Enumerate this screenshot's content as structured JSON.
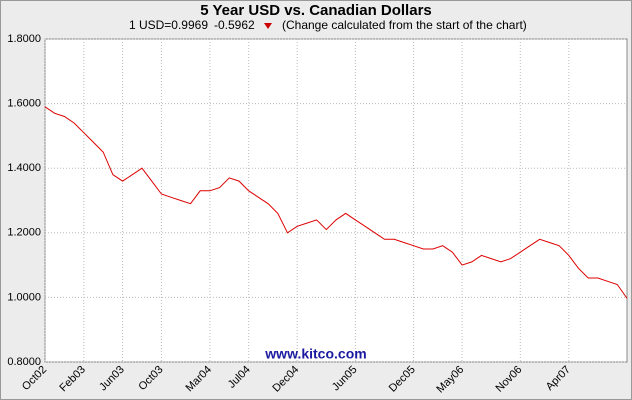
{
  "chart_data": {
    "type": "line",
    "title": "5 Year USD vs. Canadian Dollars",
    "subtitle": {
      "quote": "1 USD=0.9969",
      "change": "-0.5962",
      "note": "(Change calculated from the start of the chart)"
    },
    "watermark": "www.kitco.com",
    "x": [
      "2002-10",
      "2002-11",
      "2002-12",
      "2003-01",
      "2003-02",
      "2003-03",
      "2003-04",
      "2003-05",
      "2003-06",
      "2003-07",
      "2003-08",
      "2003-09",
      "2003-10",
      "2003-11",
      "2003-12",
      "2004-01",
      "2004-02",
      "2004-03",
      "2004-04",
      "2004-05",
      "2004-06",
      "2004-07",
      "2004-08",
      "2004-09",
      "2004-10",
      "2004-11",
      "2004-12",
      "2005-01",
      "2005-02",
      "2005-03",
      "2005-04",
      "2005-05",
      "2005-06",
      "2005-07",
      "2005-08",
      "2005-09",
      "2005-10",
      "2005-11",
      "2005-12",
      "2006-01",
      "2006-02",
      "2006-03",
      "2006-04",
      "2006-05",
      "2006-06",
      "2006-07",
      "2006-08",
      "2006-09",
      "2006-10",
      "2006-11",
      "2006-12",
      "2007-01",
      "2007-02",
      "2007-03",
      "2007-04",
      "2007-05",
      "2007-06",
      "2007-07",
      "2007-08",
      "2007-09",
      "2007-10"
    ],
    "series": [
      {
        "color": "#dd0000",
        "values": [
          1.59,
          1.57,
          1.56,
          1.54,
          1.51,
          1.48,
          1.45,
          1.38,
          1.36,
          1.38,
          1.4,
          1.36,
          1.32,
          1.31,
          1.3,
          1.29,
          1.33,
          1.33,
          1.34,
          1.37,
          1.36,
          1.33,
          1.31,
          1.29,
          1.26,
          1.2,
          1.22,
          1.23,
          1.24,
          1.21,
          1.24,
          1.26,
          1.24,
          1.22,
          1.2,
          1.18,
          1.18,
          1.17,
          1.16,
          1.15,
          1.15,
          1.16,
          1.14,
          1.1,
          1.11,
          1.13,
          1.12,
          1.11,
          1.12,
          1.14,
          1.16,
          1.18,
          1.17,
          1.16,
          1.13,
          1.09,
          1.06,
          1.06,
          1.05,
          1.04,
          0.9969
        ]
      }
    ],
    "xlim": [
      "2002-10",
      "2007-10"
    ],
    "xticks": [
      {
        "value": "2002-10",
        "label": "Oct02"
      },
      {
        "value": "2003-02",
        "label": "Feb03"
      },
      {
        "value": "2003-06",
        "label": "Jun03"
      },
      {
        "value": "2003-10",
        "label": "Oct03"
      },
      {
        "value": "2004-03",
        "label": "Mar04"
      },
      {
        "value": "2004-07",
        "label": "Jul04"
      },
      {
        "value": "2004-12",
        "label": "Dec04"
      },
      {
        "value": "2005-06",
        "label": "Jun05"
      },
      {
        "value": "2005-12",
        "label": "Dec05"
      },
      {
        "value": "2006-05",
        "label": "May06"
      },
      {
        "value": "2006-11",
        "label": "Nov06"
      },
      {
        "value": "2007-04",
        "label": "Apr07"
      }
    ],
    "ylim": [
      0.8,
      1.8
    ],
    "yticks": [
      {
        "value": 0.8,
        "label": "0.8000"
      },
      {
        "value": 1.0,
        "label": "1.0000"
      },
      {
        "value": 1.2,
        "label": "1.2000"
      },
      {
        "value": 1.4,
        "label": "1.4000"
      },
      {
        "value": 1.6,
        "label": "1.6000"
      },
      {
        "value": 1.8,
        "label": "1.8000"
      }
    ],
    "grid": true
  }
}
